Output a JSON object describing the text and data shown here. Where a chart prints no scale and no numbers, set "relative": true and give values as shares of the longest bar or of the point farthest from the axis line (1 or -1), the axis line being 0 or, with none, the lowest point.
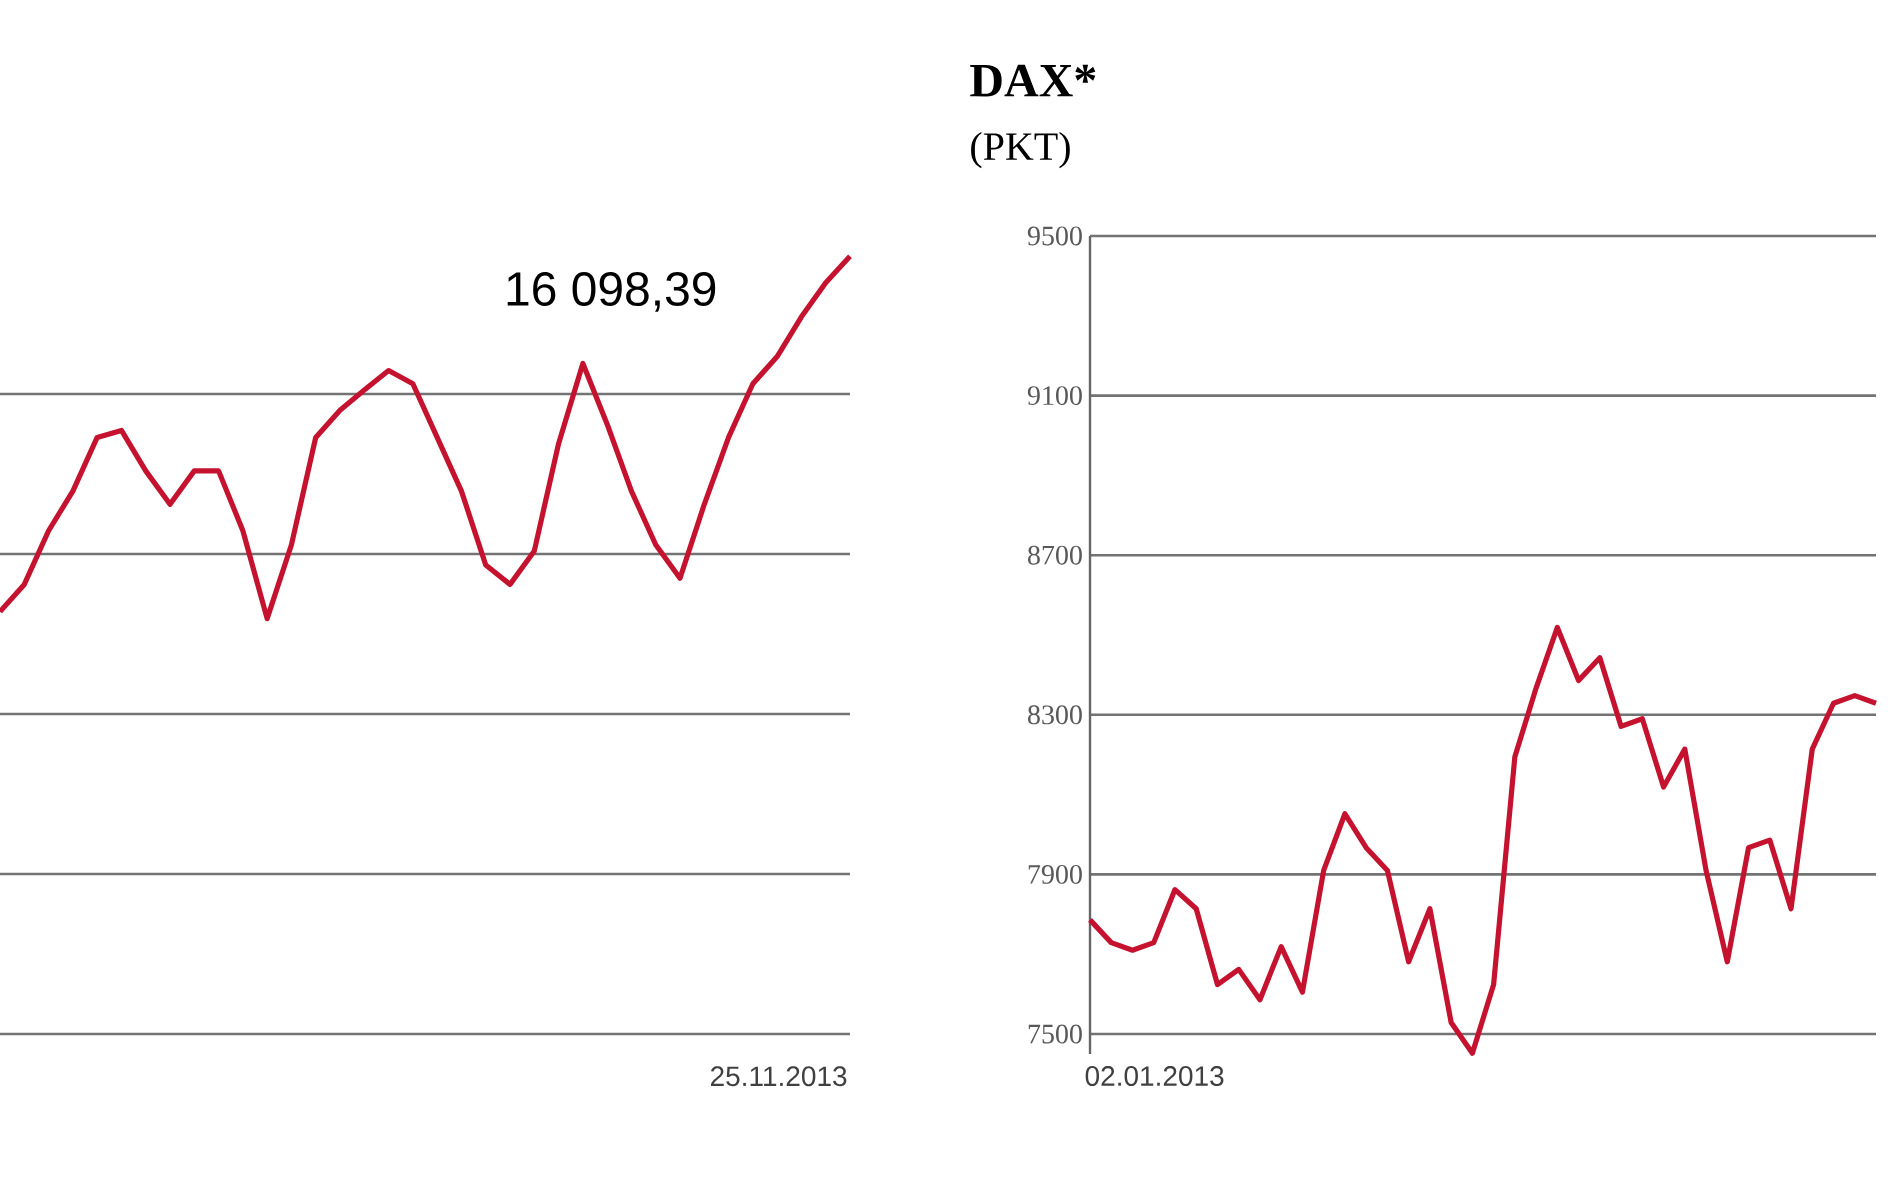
{
  "chart_data": [
    {
      "type": "line",
      "relative": true,
      "grid": "y",
      "tick_labels": false,
      "color": "#c4122f",
      "categories": [
        null,
        null,
        null,
        null,
        null,
        null,
        null,
        null,
        null,
        null,
        null,
        null,
        null,
        null,
        null,
        null,
        null,
        null,
        null,
        null,
        null,
        null,
        null,
        null,
        null,
        null,
        null,
        null,
        null,
        null,
        null,
        null,
        null,
        null,
        null,
        null
      ],
      "values": [
        0.543,
        0.578,
        0.647,
        0.698,
        0.767,
        0.776,
        0.724,
        0.681,
        0.724,
        0.724,
        0.647,
        0.534,
        0.629,
        0.767,
        0.802,
        0.828,
        0.853,
        0.836,
        0.767,
        0.698,
        0.603,
        0.578,
        0.621,
        0.759,
        0.862,
        0.784,
        0.698,
        0.629,
        0.586,
        0.681,
        0.767,
        0.836,
        0.871,
        0.922,
        0.966,
        1.0
      ],
      "annotations": [
        "16 098,39",
        "25.11.2013"
      ]
    },
    {
      "type": "line",
      "title": "DAX*",
      "subtitle": "(PKT)",
      "grid": "y",
      "tick_labels": "y",
      "color": "#c4122f",
      "ylim": [
        7450,
        9500
      ],
      "yticks": [
        7500,
        7900,
        8300,
        8700,
        9100,
        9500
      ],
      "categories": [
        null,
        null,
        null,
        null,
        null,
        null,
        null,
        null,
        null,
        null,
        null,
        null,
        null,
        null,
        null,
        null,
        null,
        null,
        null,
        null,
        null,
        null,
        null,
        null,
        null,
        null,
        null,
        null,
        null,
        null,
        null,
        null,
        null,
        null,
        null,
        null,
        null,
        null
      ],
      "values": [
        7786,
        7729,
        7710,
        7729,
        7862,
        7814,
        7624,
        7662,
        7586,
        7719,
        7605,
        7910,
        8052,
        7967,
        7910,
        7681,
        7814,
        7529,
        7452,
        7624,
        8195,
        8367,
        8519,
        8386,
        8443,
        8271,
        8290,
        8119,
        8214,
        7910,
        7681,
        7967,
        7986,
        7814,
        8214,
        8329,
        8348,
        8329
      ],
      "annotations": [
        "02.01.2013"
      ]
    }
  ]
}
